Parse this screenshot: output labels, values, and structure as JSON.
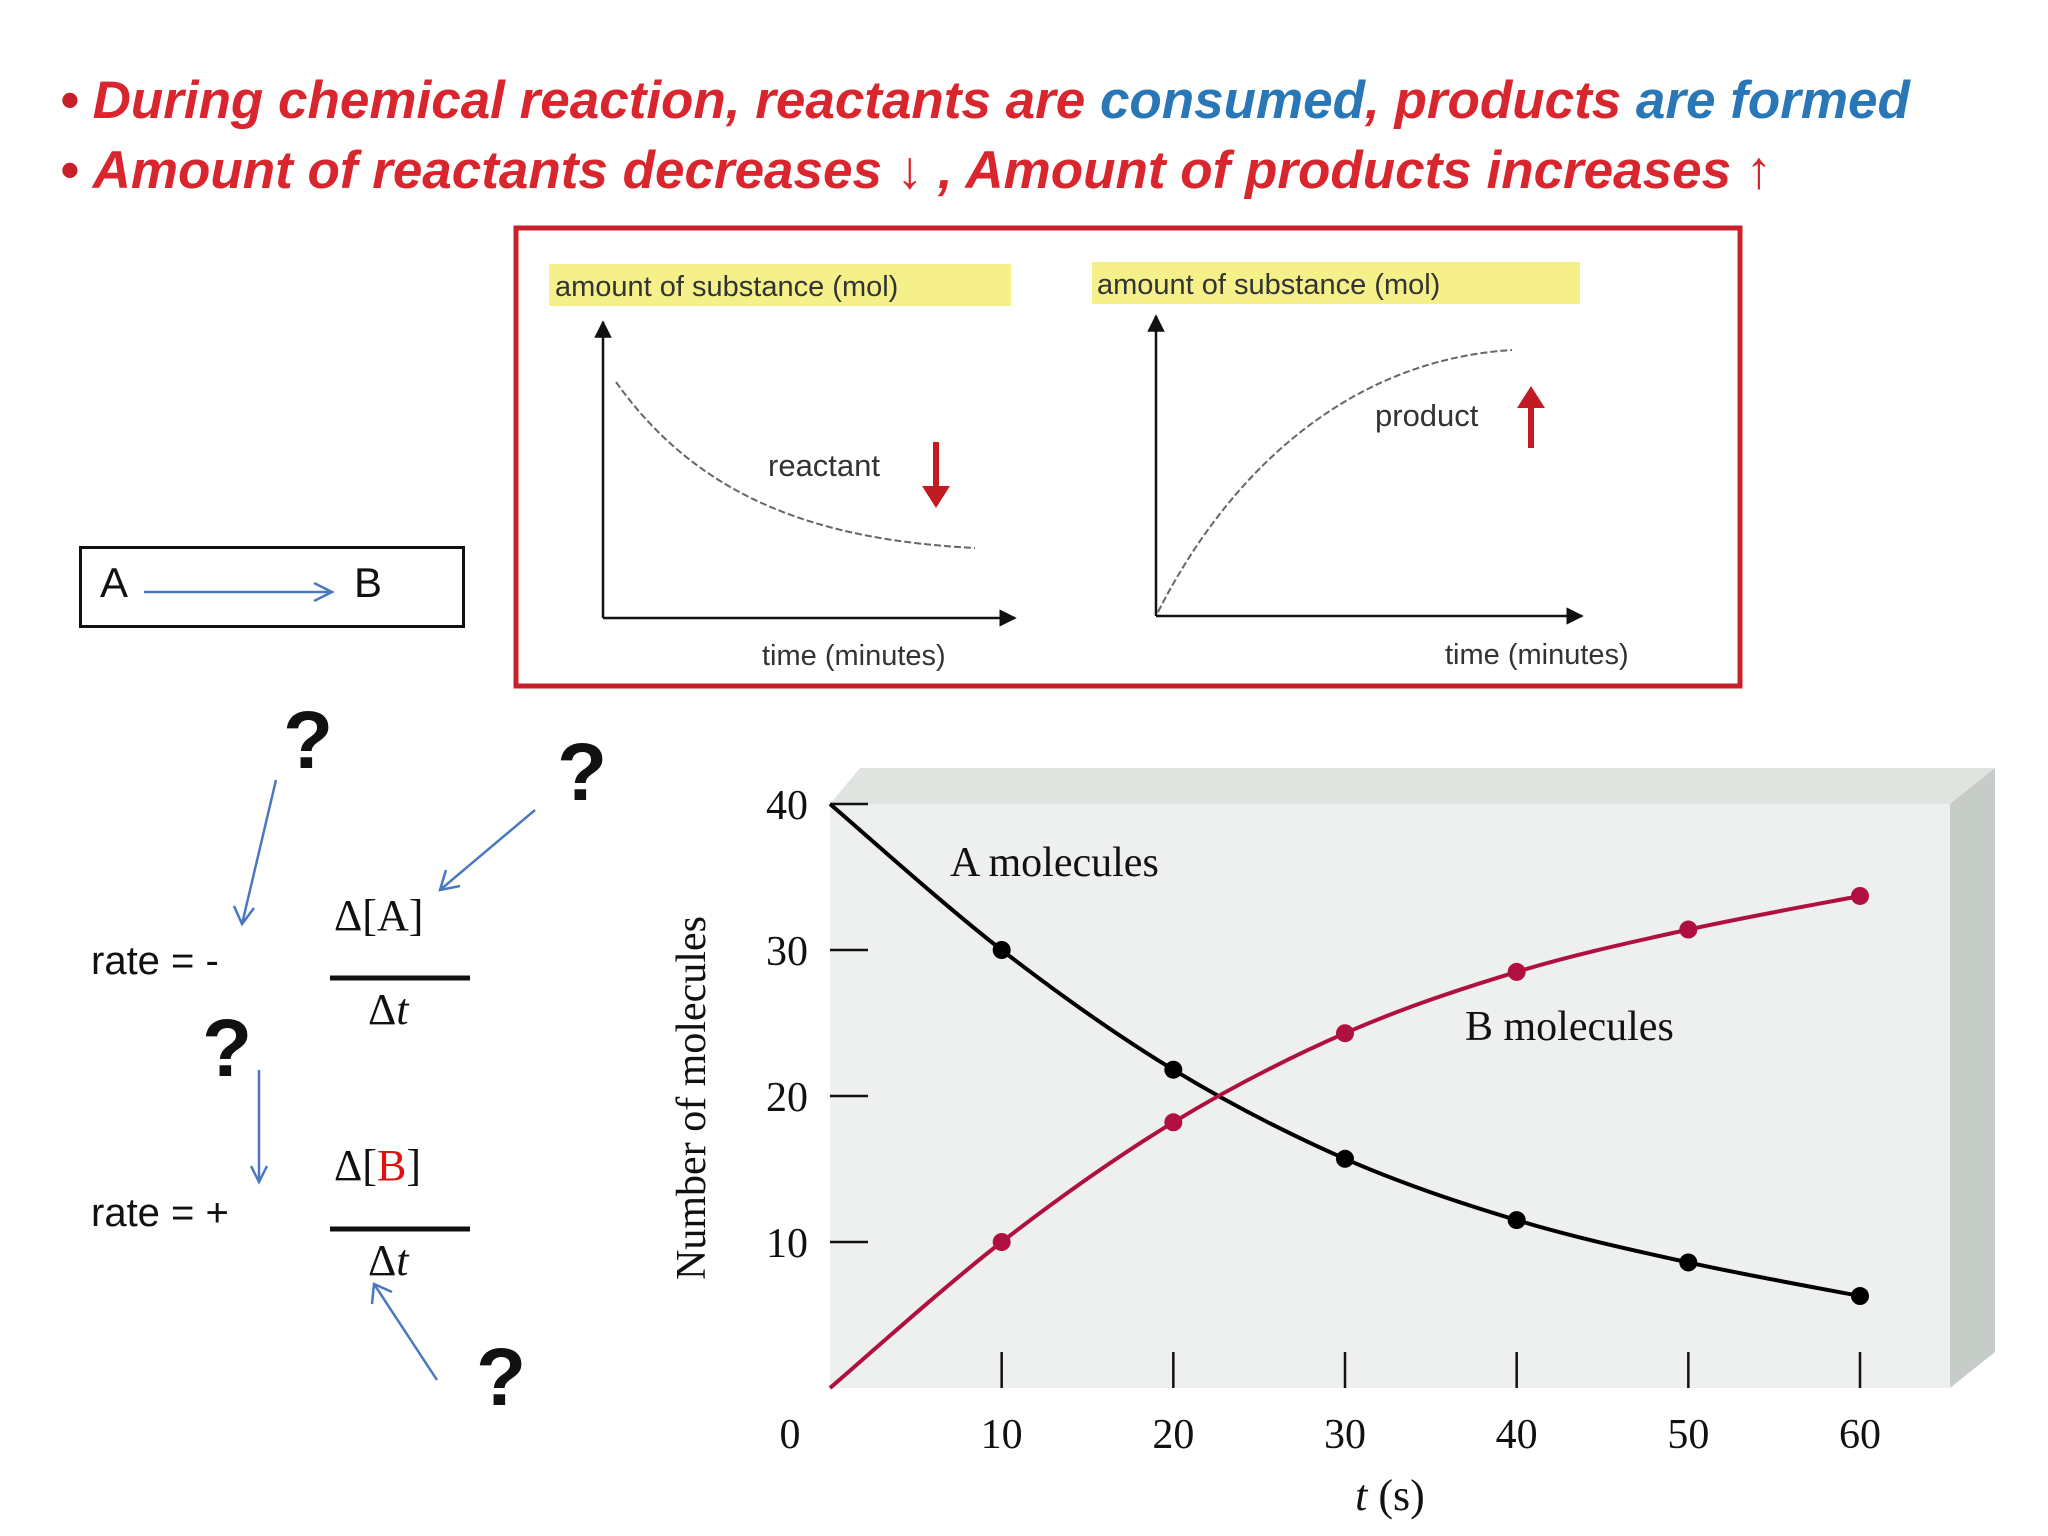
{
  "header": {
    "line1": {
      "part_red1": "During chemical reaction, reactants are ",
      "part_blue1": "consumed",
      "part_red2": ", products ",
      "part_blue2": "are formed"
    },
    "line2": {
      "text": "Amount of reactants decreases ↓ , Amount of products increases ↑"
    }
  },
  "reaction_box": {
    "reactant": "A",
    "product": "B"
  },
  "rate_equations": {
    "rate_a": {
      "prefix": "rate =  -",
      "numerator": "Δ[A]",
      "denominator_delta": "Δ",
      "denominator_var": "t"
    },
    "rate_b": {
      "prefix": "rate =  +",
      "numerator_open": "Δ[",
      "numerator_letter": "B",
      "numerator_close": "]",
      "denominator_delta": "Δ",
      "denominator_var": "t"
    },
    "question_mark": "?"
  },
  "colors": {
    "red": "#d9252d",
    "blue": "#2a77b7",
    "crimson": "#b0103f",
    "frame_red": "#c8202a",
    "arrow_blue": "#4a78c0",
    "label_highlight": "#f5f08a"
  },
  "chart_data": [
    {
      "type": "line",
      "panel": "left",
      "ylabel": "amount of substance (mol)",
      "xlabel": "time (minutes)",
      "series": [
        {
          "name": "reactant",
          "trend": "decreasing"
        }
      ]
    },
    {
      "type": "line",
      "panel": "right",
      "ylabel": "amount of substance (mol)",
      "xlabel": "time (minutes)",
      "series": [
        {
          "name": "product",
          "trend": "increasing"
        }
      ]
    },
    {
      "type": "line",
      "xlabel_italic": "t",
      "xlabel_unit": " (s)",
      "ylabel": "Number of molecules",
      "xlim": [
        0,
        60
      ],
      "ylim": [
        0,
        40
      ],
      "x_ticks": [
        0,
        10,
        20,
        30,
        40,
        50,
        60
      ],
      "y_ticks": [
        10,
        20,
        30,
        40
      ],
      "grid": false,
      "series": [
        {
          "name": "A molecules",
          "color": "#000000",
          "x": [
            0,
            10,
            20,
            30,
            40,
            50,
            60
          ],
          "y": [
            40,
            30,
            21.8,
            15.7,
            11.5,
            8.6,
            6.3
          ]
        },
        {
          "name": "B molecules",
          "color": "#b0103f",
          "x": [
            0,
            10,
            20,
            30,
            40,
            50,
            60
          ],
          "y": [
            0,
            10,
            18.2,
            24.3,
            28.5,
            31.4,
            33.7
          ]
        }
      ]
    }
  ]
}
